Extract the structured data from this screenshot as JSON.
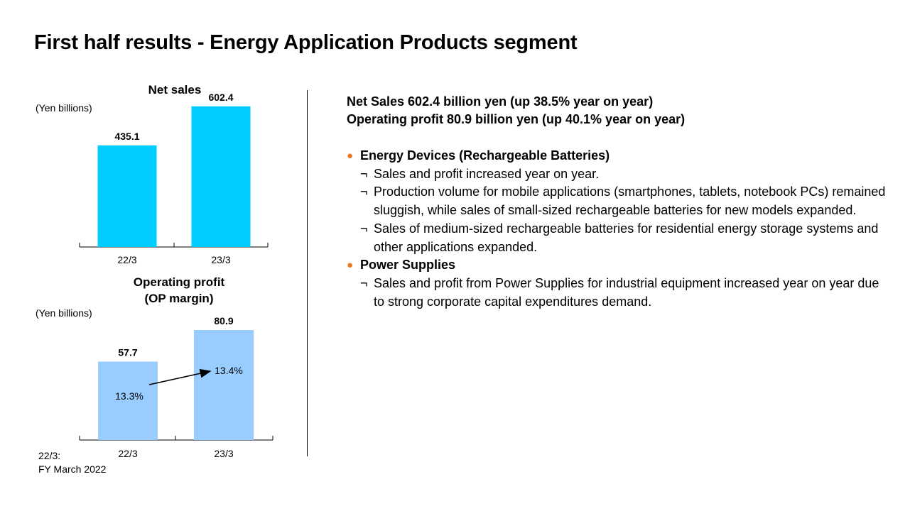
{
  "title": "First half results - Energy Application Products segment",
  "colors": {
    "net_sales_bar": "#00CCFF",
    "op_bar": "#99CCFF",
    "bullet": "#E87722"
  },
  "chart_data": [
    {
      "type": "bar",
      "title": "Net sales",
      "ylabel": "(Yen billions)",
      "categories": [
        "22/3",
        "23/3"
      ],
      "values": [
        435.1,
        602.4
      ],
      "value_labels": [
        "435.1",
        "602.4"
      ],
      "ylim": [
        0,
        620
      ]
    },
    {
      "type": "bar",
      "title_lines": [
        "Operating profit",
        "(OP margin)"
      ],
      "ylabel": "(Yen billions)",
      "categories": [
        "22/3",
        "23/3"
      ],
      "values": [
        57.7,
        80.9
      ],
      "value_labels": [
        "57.7",
        "80.9"
      ],
      "margins": [
        "13.3%",
        "13.4%"
      ],
      "ylim": [
        0,
        83
      ]
    }
  ],
  "footnote": [
    "22/3:",
    "FY March 2022"
  ],
  "summary": [
    "Net Sales  602.4 billion yen (up 38.5% year on year)",
    "Operating profit  80.9 billion yen (up 40.1% year on year)"
  ],
  "bullet_marker": "●",
  "sub_marker": "¬",
  "sections": [
    {
      "heading": "Energy Devices (Rechargeable Batteries)",
      "items": [
        "Sales and profit increased year on year.",
        "Production volume for mobile applications (smartphones, tablets, notebook PCs) remained sluggish, while sales of small-sized rechargeable batteries for new models expanded.",
        "Sales of medium-sized rechargeable batteries for residential energy storage systems and other applications expanded."
      ]
    },
    {
      "heading": "Power Supplies",
      "items": [
        "Sales and profit from Power Supplies for industrial equipment increased year on year due to strong corporate capital expenditures demand."
      ]
    }
  ]
}
